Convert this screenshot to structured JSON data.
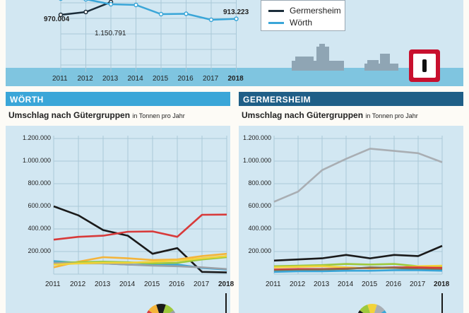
{
  "top_chart": {
    "years": [
      "2011",
      "2012",
      "2013",
      "2014",
      "2015",
      "2016",
      "2017",
      "2018"
    ],
    "labels": {
      "germersheim_2011": "970.004",
      "germersheim_2013": "1.150.791",
      "woerth_2018": "913.223"
    },
    "legend": [
      {
        "name": "Germersheim",
        "color": "#1c2d3a"
      },
      {
        "name": "Wörth",
        "color": "#3aa6d8"
      }
    ]
  },
  "sections": [
    {
      "header": "WÖRTH",
      "subtitle": "Umschlag nach Gütergruppen",
      "unit": "in Tonnen pro Jahr",
      "header_color": "#3aa6d8"
    },
    {
      "header": "GERMERSHEIM",
      "subtitle": "Umschlag nach Gütergruppen",
      "unit": "in Tonnen pro Jahr",
      "header_color": "#1f5f87"
    }
  ],
  "chart_data": [
    {
      "type": "line",
      "title": "",
      "x": [
        2011,
        2012,
        2013,
        2014,
        2015,
        2016,
        2017,
        2018
      ],
      "series": [
        {
          "name": "Germersheim",
          "color": "#1c2d3a",
          "values": [
            970004,
            1010000,
            1150791,
            null,
            null,
            null,
            null,
            null
          ]
        },
        {
          "name": "Wörth",
          "color": "#3aa6d8",
          "values": [
            1200000,
            1190000,
            1120000,
            1110000,
            980000,
            985000,
            900000,
            913223
          ]
        }
      ]
    },
    {
      "type": "line",
      "title": "Umschlag nach Gütergruppen",
      "x": [
        2011,
        2012,
        2013,
        2014,
        2015,
        2016,
        2017,
        2018
      ],
      "y_ticks": [
        "200.000",
        "400.000",
        "600.000",
        "800.000",
        "1.000.000",
        "1.200.000"
      ],
      "ylim": [
        0,
        1200000
      ],
      "series": [
        {
          "color": "#1a1a1a",
          "values": [
            600000,
            520000,
            390000,
            340000,
            180000,
            230000,
            20000,
            15000
          ]
        },
        {
          "color": "#d83a3a",
          "values": [
            305000,
            330000,
            340000,
            375000,
            378000,
            330000,
            525000,
            527000
          ]
        },
        {
          "color": "#f4b43a",
          "values": [
            60000,
            110000,
            150000,
            140000,
            125000,
            130000,
            160000,
            180000
          ]
        },
        {
          "color": "#3aa6d8",
          "values": [
            115000,
            100000,
            95000,
            85000,
            80000,
            85000,
            55000,
            40000
          ]
        },
        {
          "color": "#9ec93c",
          "values": [
            100000,
            105000,
            110000,
            105000,
            95000,
            100000,
            130000,
            150000
          ]
        },
        {
          "color": "#9aa0a6",
          "values": [
            100000,
            95000,
            95000,
            85000,
            75000,
            70000,
            60000,
            45000
          ]
        },
        {
          "color": "#f2d33a",
          "values": [
            85000,
            95000,
            100000,
            100000,
            110000,
            120000,
            140000,
            160000
          ]
        }
      ]
    },
    {
      "type": "line",
      "title": "Umschlag nach Gütergruppen",
      "x": [
        2011,
        2012,
        2013,
        2014,
        2015,
        2016,
        2017,
        2018
      ],
      "y_ticks": [
        "200.000",
        "400.000",
        "600.000",
        "800.000",
        "1.000.000",
        "1.200.000"
      ],
      "ylim": [
        0,
        1200000
      ],
      "series": [
        {
          "color": "#a9aeb3",
          "values": [
            640000,
            730000,
            920000,
            1020000,
            1110000,
            1090000,
            1070000,
            990000
          ]
        },
        {
          "color": "#1a1a1a",
          "values": [
            120000,
            130000,
            140000,
            170000,
            140000,
            170000,
            160000,
            250000
          ]
        },
        {
          "color": "#9ec93c",
          "values": [
            70000,
            75000,
            80000,
            90000,
            85000,
            90000,
            70000,
            60000
          ]
        },
        {
          "color": "#f2d33a",
          "values": [
            60000,
            65000,
            70000,
            60000,
            50000,
            55000,
            70000,
            75000
          ]
        },
        {
          "color": "#d83a3a",
          "values": [
            40000,
            45000,
            45000,
            50000,
            55000,
            60000,
            60000,
            55000
          ]
        },
        {
          "color": "#8a6d4a",
          "values": [
            30000,
            35000,
            40000,
            45000,
            60000,
            55000,
            45000,
            40000
          ]
        },
        {
          "color": "#3aa6d8",
          "values": [
            20000,
            25000,
            25000,
            30000,
            30000,
            35000,
            35000,
            30000
          ]
        }
      ]
    }
  ]
}
